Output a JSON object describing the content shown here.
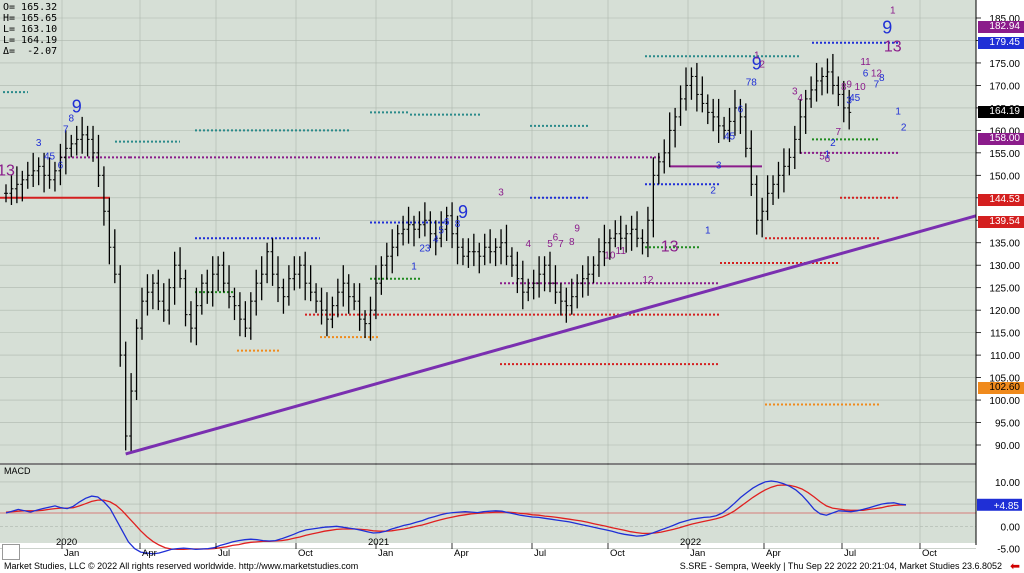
{
  "chart_data": {
    "type": "ohlc",
    "ohlc_readout": [
      "O= 165.32",
      "H= 165.65",
      "L= 163.10",
      "L= 164.19",
      "Δ=  -2.07"
    ],
    "y_axis": {
      "min": 85,
      "max": 187,
      "ticks": [
        "185.00",
        "180.00",
        "175.00",
        "170.00",
        "165.00",
        "160.00",
        "155.00",
        "150.00",
        "145.00",
        "140.00",
        "135.00",
        "130.00",
        "125.00",
        "120.00",
        "115.00",
        "110.00",
        "105.00",
        "100.00",
        "95.00",
        "90.00"
      ],
      "tick_values": [
        185,
        180,
        175,
        170,
        165,
        160,
        155,
        150,
        145,
        140,
        135,
        130,
        125,
        120,
        115,
        110,
        105,
        100,
        95,
        90
      ]
    },
    "x_axis": {
      "labels": [
        "Jan",
        "Apr",
        "Jul",
        "Oct",
        "Jan",
        "Apr",
        "Jul",
        "Oct",
        "Jan",
        "Apr",
        "Jul",
        "Oct"
      ],
      "year_labels": [
        "2020",
        "2021",
        "2022"
      ]
    },
    "price_tags": [
      {
        "text": "182.94",
        "value": 182.94,
        "bg": "#8b1c8b",
        "fg": "#ffffff"
      },
      {
        "text": "179.45",
        "value": 179.45,
        "bg": "#1f2fd6",
        "fg": "#ffffff"
      },
      {
        "text": "164.19",
        "value": 164.19,
        "bg": "#000000",
        "fg": "#ffffff"
      },
      {
        "text": "158.00",
        "value": 158.0,
        "bg": "#8b1c8b",
        "fg": "#ffffff"
      },
      {
        "text": "144.53",
        "value": 144.53,
        "bg": "#d41f1f",
        "fg": "#ffffff"
      },
      {
        "text": "139.54",
        "value": 139.54,
        "bg": "#d41f1f",
        "fg": "#ffffff"
      },
      {
        "text": "102.60",
        "value": 102.6,
        "bg": "#f08a1c",
        "fg": "#000000"
      }
    ],
    "weekly_close": [
      146,
      147,
      148,
      149,
      150,
      151,
      152,
      150,
      149,
      151,
      154,
      156,
      157,
      158,
      159,
      158,
      155,
      150,
      142,
      134,
      128,
      110,
      92,
      102,
      116,
      122,
      124,
      126,
      122,
      120,
      125,
      130,
      127,
      119,
      116,
      121,
      126,
      124,
      128,
      130,
      126,
      123,
      121,
      118,
      116,
      122,
      126,
      128,
      133,
      128,
      125,
      123,
      127,
      128,
      130,
      126,
      124,
      122,
      120,
      118,
      121,
      124,
      126,
      123,
      122,
      118,
      117,
      120,
      126,
      130,
      132,
      134,
      137,
      138,
      139,
      138,
      139,
      140,
      137,
      136,
      138,
      141,
      137,
      134,
      132,
      133,
      133,
      132,
      134,
      133,
      134,
      135,
      132,
      130,
      127,
      124,
      125,
      126,
      128,
      130,
      126,
      124,
      122,
      121,
      123,
      126,
      127,
      128,
      130,
      133,
      135,
      136,
      137,
      136,
      137,
      138,
      136,
      135,
      140,
      150,
      153,
      155,
      160,
      163,
      167,
      170,
      172,
      168,
      166,
      164,
      163,
      161,
      160,
      162,
      165,
      163,
      156,
      148,
      140,
      142,
      146,
      148,
      150,
      152,
      154,
      158,
      163,
      167,
      169,
      171,
      172,
      173,
      170,
      168,
      165,
      164
    ],
    "trendline": {
      "start": {
        "week": 22,
        "value": 88
      },
      "end": {
        "week": 176,
        "value": 138
      }
    },
    "sequential_labels": [
      {
        "t": "13",
        "w": 0,
        "v": 150,
        "c": "#8b1c8b",
        "s": 16
      },
      {
        "t": "3",
        "w": 6,
        "v": 156.5,
        "c": "#1f2fd6",
        "s": 10
      },
      {
        "t": "45",
        "w": 8,
        "v": 153.5,
        "c": "#1f2fd6",
        "s": 10
      },
      {
        "t": "6",
        "w": 10,
        "v": 151.5,
        "c": "#1f2fd6",
        "s": 10
      },
      {
        "t": "7",
        "w": 11,
        "v": 159.5,
        "c": "#1f2fd6",
        "s": 10
      },
      {
        "t": "8",
        "w": 12,
        "v": 162,
        "c": "#1f2fd6",
        "s": 10
      },
      {
        "t": "9",
        "w": 13,
        "v": 164,
        "c": "#1f2fd6",
        "s": 18
      },
      {
        "t": "23",
        "w": 77,
        "v": 133,
        "c": "#1f2fd6",
        "s": 10
      },
      {
        "t": "4",
        "w": 79,
        "v": 135,
        "c": "#1f2fd6",
        "s": 10
      },
      {
        "t": "5",
        "w": 80,
        "v": 137,
        "c": "#1f2fd6",
        "s": 10
      },
      {
        "t": "6",
        "w": 81,
        "v": 139,
        "c": "#1f2fd6",
        "s": 10
      },
      {
        "t": "8",
        "w": 83,
        "v": 138.5,
        "c": "#1f2fd6",
        "s": 10
      },
      {
        "t": "9",
        "w": 84,
        "v": 140.5,
        "c": "#1f2fd6",
        "s": 18
      },
      {
        "t": "1",
        "w": 75,
        "v": 129,
        "c": "#1f2fd6",
        "s": 10
      },
      {
        "t": "3",
        "w": 91,
        "v": 145.5,
        "c": "#8b1c8b",
        "s": 10
      },
      {
        "t": "4",
        "w": 96,
        "v": 134,
        "c": "#8b1c8b",
        "s": 10
      },
      {
        "t": "5",
        "w": 100,
        "v": 134,
        "c": "#8b1c8b",
        "s": 10
      },
      {
        "t": "6",
        "w": 101,
        "v": 135.5,
        "c": "#8b1c8b",
        "s": 10
      },
      {
        "t": "7",
        "w": 102,
        "v": 134,
        "c": "#8b1c8b",
        "s": 10
      },
      {
        "t": "8",
        "w": 104,
        "v": 134.5,
        "c": "#8b1c8b",
        "s": 10
      },
      {
        "t": "9",
        "w": 105,
        "v": 137.5,
        "c": "#8b1c8b",
        "s": 10
      },
      {
        "t": "10",
        "w": 111,
        "v": 131.5,
        "c": "#8b1c8b",
        "s": 10
      },
      {
        "t": "11",
        "w": 113,
        "v": 132.5,
        "c": "#8b1c8b",
        "s": 10
      },
      {
        "t": "12",
        "w": 118,
        "v": 126,
        "c": "#8b1c8b",
        "s": 10
      },
      {
        "t": "13",
        "w": 122,
        "v": 133,
        "c": "#8b1c8b",
        "s": 16
      },
      {
        "t": "1",
        "w": 129,
        "v": 137,
        "c": "#1f2fd6",
        "s": 10
      },
      {
        "t": "2",
        "w": 130,
        "v": 146,
        "c": "#1f2fd6",
        "s": 10
      },
      {
        "t": "3",
        "w": 131,
        "v": 151.5,
        "c": "#1f2fd6",
        "s": 10
      },
      {
        "t": "45",
        "w": 133,
        "v": 158,
        "c": "#1f2fd6",
        "s": 10
      },
      {
        "t": "6",
        "w": 135,
        "v": 164,
        "c": "#1f2fd6",
        "s": 10
      },
      {
        "t": "78",
        "w": 137,
        "v": 170,
        "c": "#1f2fd6",
        "s": 10
      },
      {
        "t": "9",
        "w": 138,
        "v": 173.5,
        "c": "#1f2fd6",
        "s": 18
      },
      {
        "t": "1",
        "w": 138,
        "v": 176,
        "c": "#8b1c8b",
        "s": 10
      },
      {
        "t": "2",
        "w": 139,
        "v": 174,
        "c": "#8b1c8b",
        "s": 10
      },
      {
        "t": "3",
        "w": 145,
        "v": 168,
        "c": "#8b1c8b",
        "s": 10
      },
      {
        "t": "4",
        "w": 146,
        "v": 166.5,
        "c": "#8b1c8b",
        "s": 10
      },
      {
        "t": "5",
        "w": 150,
        "v": 153.5,
        "c": "#8b1c8b",
        "s": 10
      },
      {
        "t": "6",
        "w": 151,
        "v": 153,
        "c": "#8b1c8b",
        "s": 10
      },
      {
        "t": "7",
        "w": 153,
        "v": 159,
        "c": "#8b1c8b",
        "s": 10
      },
      {
        "t": "1",
        "w": 151,
        "v": 154,
        "c": "#1f2fd6",
        "s": 10
      },
      {
        "t": "2",
        "w": 152,
        "v": 156.5,
        "c": "#1f2fd6",
        "s": 10
      },
      {
        "t": "3",
        "w": 155,
        "v": 166,
        "c": "#1f2fd6",
        "s": 10
      },
      {
        "t": "45",
        "w": 156,
        "v": 166.5,
        "c": "#1f2fd6",
        "s": 10
      },
      {
        "t": "8",
        "w": 154,
        "v": 169,
        "c": "#8b1c8b",
        "s": 10
      },
      {
        "t": "9",
        "w": 155,
        "v": 169.5,
        "c": "#8b1c8b",
        "s": 10
      },
      {
        "t": "10",
        "w": 157,
        "v": 169,
        "c": "#8b1c8b",
        "s": 10
      },
      {
        "t": "6",
        "w": 158,
        "v": 172,
        "c": "#1f2fd6",
        "s": 10
      },
      {
        "t": "7",
        "w": 160,
        "v": 169.5,
        "c": "#1f2fd6",
        "s": 10
      },
      {
        "t": "8",
        "w": 161,
        "v": 171,
        "c": "#1f2fd6",
        "s": 10
      },
      {
        "t": "11",
        "w": 158,
        "v": 174.5,
        "c": "#8b1c8b",
        "s": 10
      },
      {
        "t": "12",
        "w": 160,
        "v": 172,
        "c": "#8b1c8b",
        "s": 10
      },
      {
        "t": "13",
        "w": 163,
        "v": 177.5,
        "c": "#8b1c8b",
        "s": 16
      },
      {
        "t": "9",
        "w": 162,
        "v": 181.5,
        "c": "#1f2fd6",
        "s": 18
      },
      {
        "t": "1",
        "w": 163,
        "v": 186,
        "c": "#8b1c8b",
        "s": 10
      },
      {
        "t": "1",
        "w": 164,
        "v": 163.5,
        "c": "#1f2fd6",
        "s": 10
      },
      {
        "t": "2",
        "w": 165,
        "v": 160,
        "c": "#1f2fd6",
        "s": 10
      }
    ],
    "macd": {
      "label": "MACD",
      "y_range": [
        -7,
        12
      ],
      "ticks": [
        "10.00",
        "5.00",
        "0.00",
        "-5.00"
      ],
      "tick_values": [
        10,
        5,
        0,
        -5
      ],
      "value_tag": "+4.85",
      "value": 4.85,
      "macd_line": [
        3,
        3.4,
        3.8,
        3.5,
        3.2,
        3.6,
        4,
        4.3,
        4.6,
        4.2,
        4,
        4.5,
        5.5,
        6.3,
        6.8,
        6.6,
        5.5,
        4,
        1.5,
        -1,
        -3.5,
        -5,
        -5.8,
        -6,
        -6.2,
        -6,
        -5.6,
        -5.2,
        -5,
        -4.9,
        -5,
        -5.2,
        -5.1,
        -5,
        -4.8,
        -4.3,
        -3.9,
        -3.5,
        -3.2,
        -3,
        -2.9,
        -3,
        -3.2,
        -3.3,
        -3.2,
        -2.8,
        -2.3,
        -1.8,
        -1.2,
        -0.8,
        -0.6,
        -0.4,
        -0.2,
        -0.1,
        0,
        -0.2,
        -0.4,
        -0.6,
        -0.9,
        -1.2,
        -1.5,
        -1.4,
        -1.1,
        -0.6,
        -0.2,
        0.2,
        0.5,
        0.9,
        1.3,
        1.8,
        2.2,
        2.6,
        2.9,
        3.1,
        3.2,
        3.3,
        3.2,
        3.1,
        3.3,
        3.4,
        3.5,
        3.4,
        3.1,
        2.8,
        2.5,
        2.3,
        2.1,
        2,
        1.8,
        1.6,
        1.4,
        1.2,
        1,
        0.7,
        0.4,
        0.1,
        -0.2,
        -0.5,
        -0.8,
        -1.1,
        -1.5,
        -1.8,
        -2,
        -2.2,
        -2.1,
        -1.8,
        -1.3,
        -0.8,
        -0.3,
        0.2,
        0.8,
        1.2,
        1.6,
        1.8,
        2,
        2.1,
        2.4,
        3,
        4,
        5.2,
        6.5,
        7.6,
        8.6,
        9.4,
        10,
        10.2,
        10,
        9.6,
        9,
        8.2,
        7,
        5.5,
        3.8,
        2.8,
        2.5,
        3,
        3.5,
        3.4,
        3.3,
        3.5,
        3.8,
        4.2,
        4.6,
        5,
        5.2,
        5.3,
        5,
        4.85
      ],
      "signal_line": [
        3.2,
        3.3,
        3.4,
        3.5,
        3.5,
        3.5,
        3.6,
        3.8,
        4,
        4.1,
        4.1,
        4.2,
        4.6,
        5.1,
        5.6,
        5.9,
        5.9,
        5.5,
        4.7,
        3.5,
        2,
        0.5,
        -1,
        -2.3,
        -3.4,
        -4.2,
        -4.8,
        -5.1,
        -5.2,
        -5.2,
        -5.1,
        -5.1,
        -5.1,
        -5.1,
        -5,
        -4.8,
        -4.6,
        -4.3,
        -4.1,
        -3.8,
        -3.6,
        -3.5,
        -3.4,
        -3.4,
        -3.3,
        -3.2,
        -3,
        -2.7,
        -2.4,
        -2,
        -1.7,
        -1.4,
        -1.1,
        -0.9,
        -0.7,
        -0.6,
        -0.6,
        -0.6,
        -0.7,
        -0.8,
        -1,
        -1.1,
        -1.1,
        -1,
        -0.8,
        -0.6,
        -0.3,
        0,
        0.3,
        0.7,
        1.1,
        1.5,
        1.8,
        2.1,
        2.4,
        2.6,
        2.8,
        2.9,
        3,
        3.1,
        3.2,
        3.2,
        3.2,
        3.1,
        2.9,
        2.8,
        2.6,
        2.5,
        2.3,
        2.2,
        2,
        1.8,
        1.6,
        1.4,
        1.2,
        0.9,
        0.6,
        0.3,
        0,
        -0.3,
        -0.6,
        -0.9,
        -1.2,
        -1.4,
        -1.6,
        -1.6,
        -1.5,
        -1.3,
        -1,
        -0.7,
        -0.3,
        0.1,
        0.5,
        0.8,
        1.1,
        1.4,
        1.7,
        2.1,
        2.7,
        3.5,
        4.5,
        5.5,
        6.5,
        7.4,
        8.2,
        8.8,
        9.2,
        9.3,
        9.2,
        8.9,
        8.4,
        7.6,
        6.6,
        5.5,
        4.6,
        4.1,
        3.9,
        3.7,
        3.6,
        3.6,
        3.6,
        3.8,
        4,
        4.2,
        4.5,
        4.7,
        4.8,
        4.8
      ]
    }
  },
  "footer": {
    "left": "Market Studies, LLC © 2022 All rights reserved worldwide. http://www.marketstudies.com",
    "right": "S.SRE - Sempra, Weekly | Thu Sep 22 2022 20:21:04, Market Studies 23.6.8052"
  },
  "colors": {
    "bg": "#d6dfd6",
    "grid": "#aeb8ae",
    "trend": "#7a2fb0",
    "teal": "#2a8a8a",
    "blue": "#1f2fd6",
    "red": "#d41f1f",
    "orange": "#f08a1c",
    "purple": "#8b1c8b",
    "green": "#1f8a1f",
    "macd_line": "#1f2fd6",
    "signal_line": "#e02020"
  }
}
